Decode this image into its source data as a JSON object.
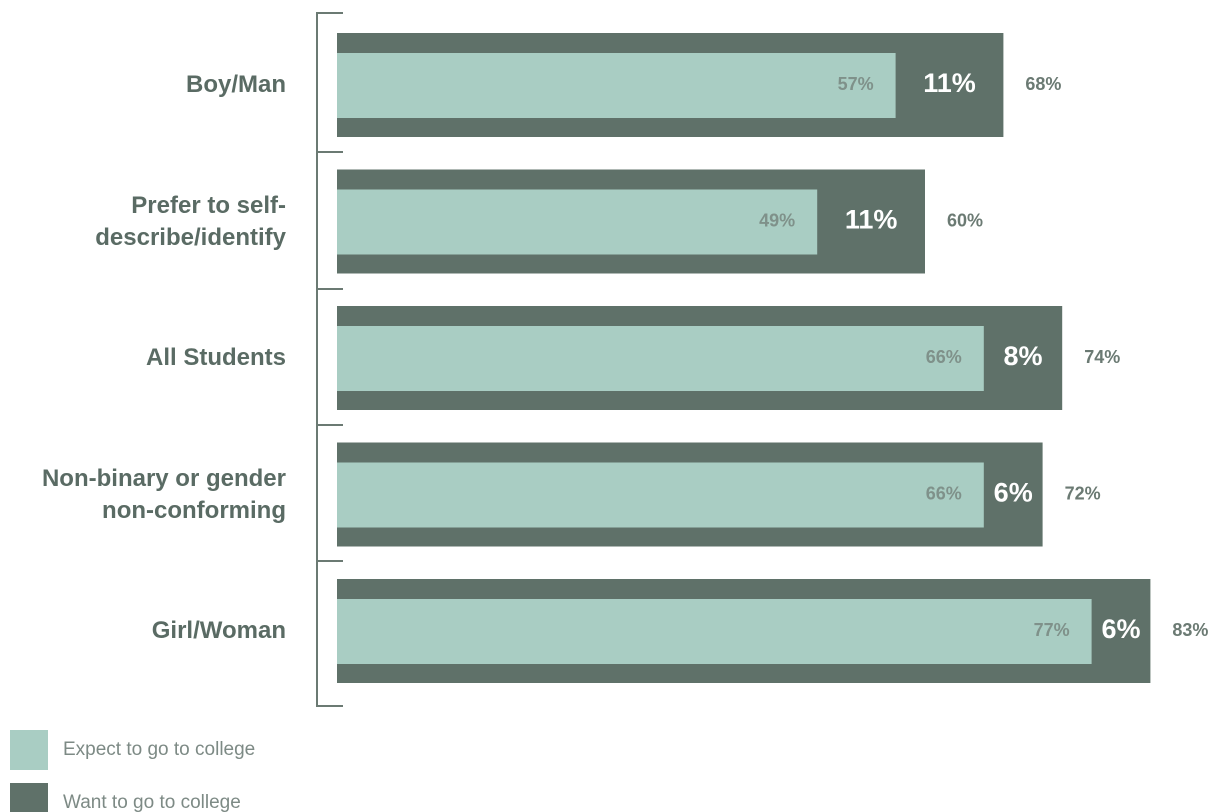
{
  "chart_data": {
    "type": "bar",
    "categories": [
      "Boy/Man",
      "Prefer to self-\ndescribe/identify",
      "All Students",
      "Non-binary or gender\nnon-conforming",
      "Girl/Woman"
    ],
    "series": [
      {
        "name": "Expect to go to college",
        "color": "#a9cdc3",
        "values": [
          57,
          49,
          66,
          66,
          77
        ],
        "value_labels": [
          "57%",
          "49%",
          "66%",
          "66%",
          "77%"
        ]
      },
      {
        "name": "Want to go to college",
        "color": "#5f7169",
        "values": [
          68,
          60,
          74,
          72,
          83
        ],
        "value_labels": [
          "68%",
          "60%",
          "74%",
          "72%",
          "83%"
        ]
      }
    ],
    "differences": {
      "values": [
        11,
        11,
        8,
        6,
        6
      ],
      "value_labels": [
        "11%",
        "11%",
        "8%",
        "6%",
        "6%"
      ]
    }
  }
}
